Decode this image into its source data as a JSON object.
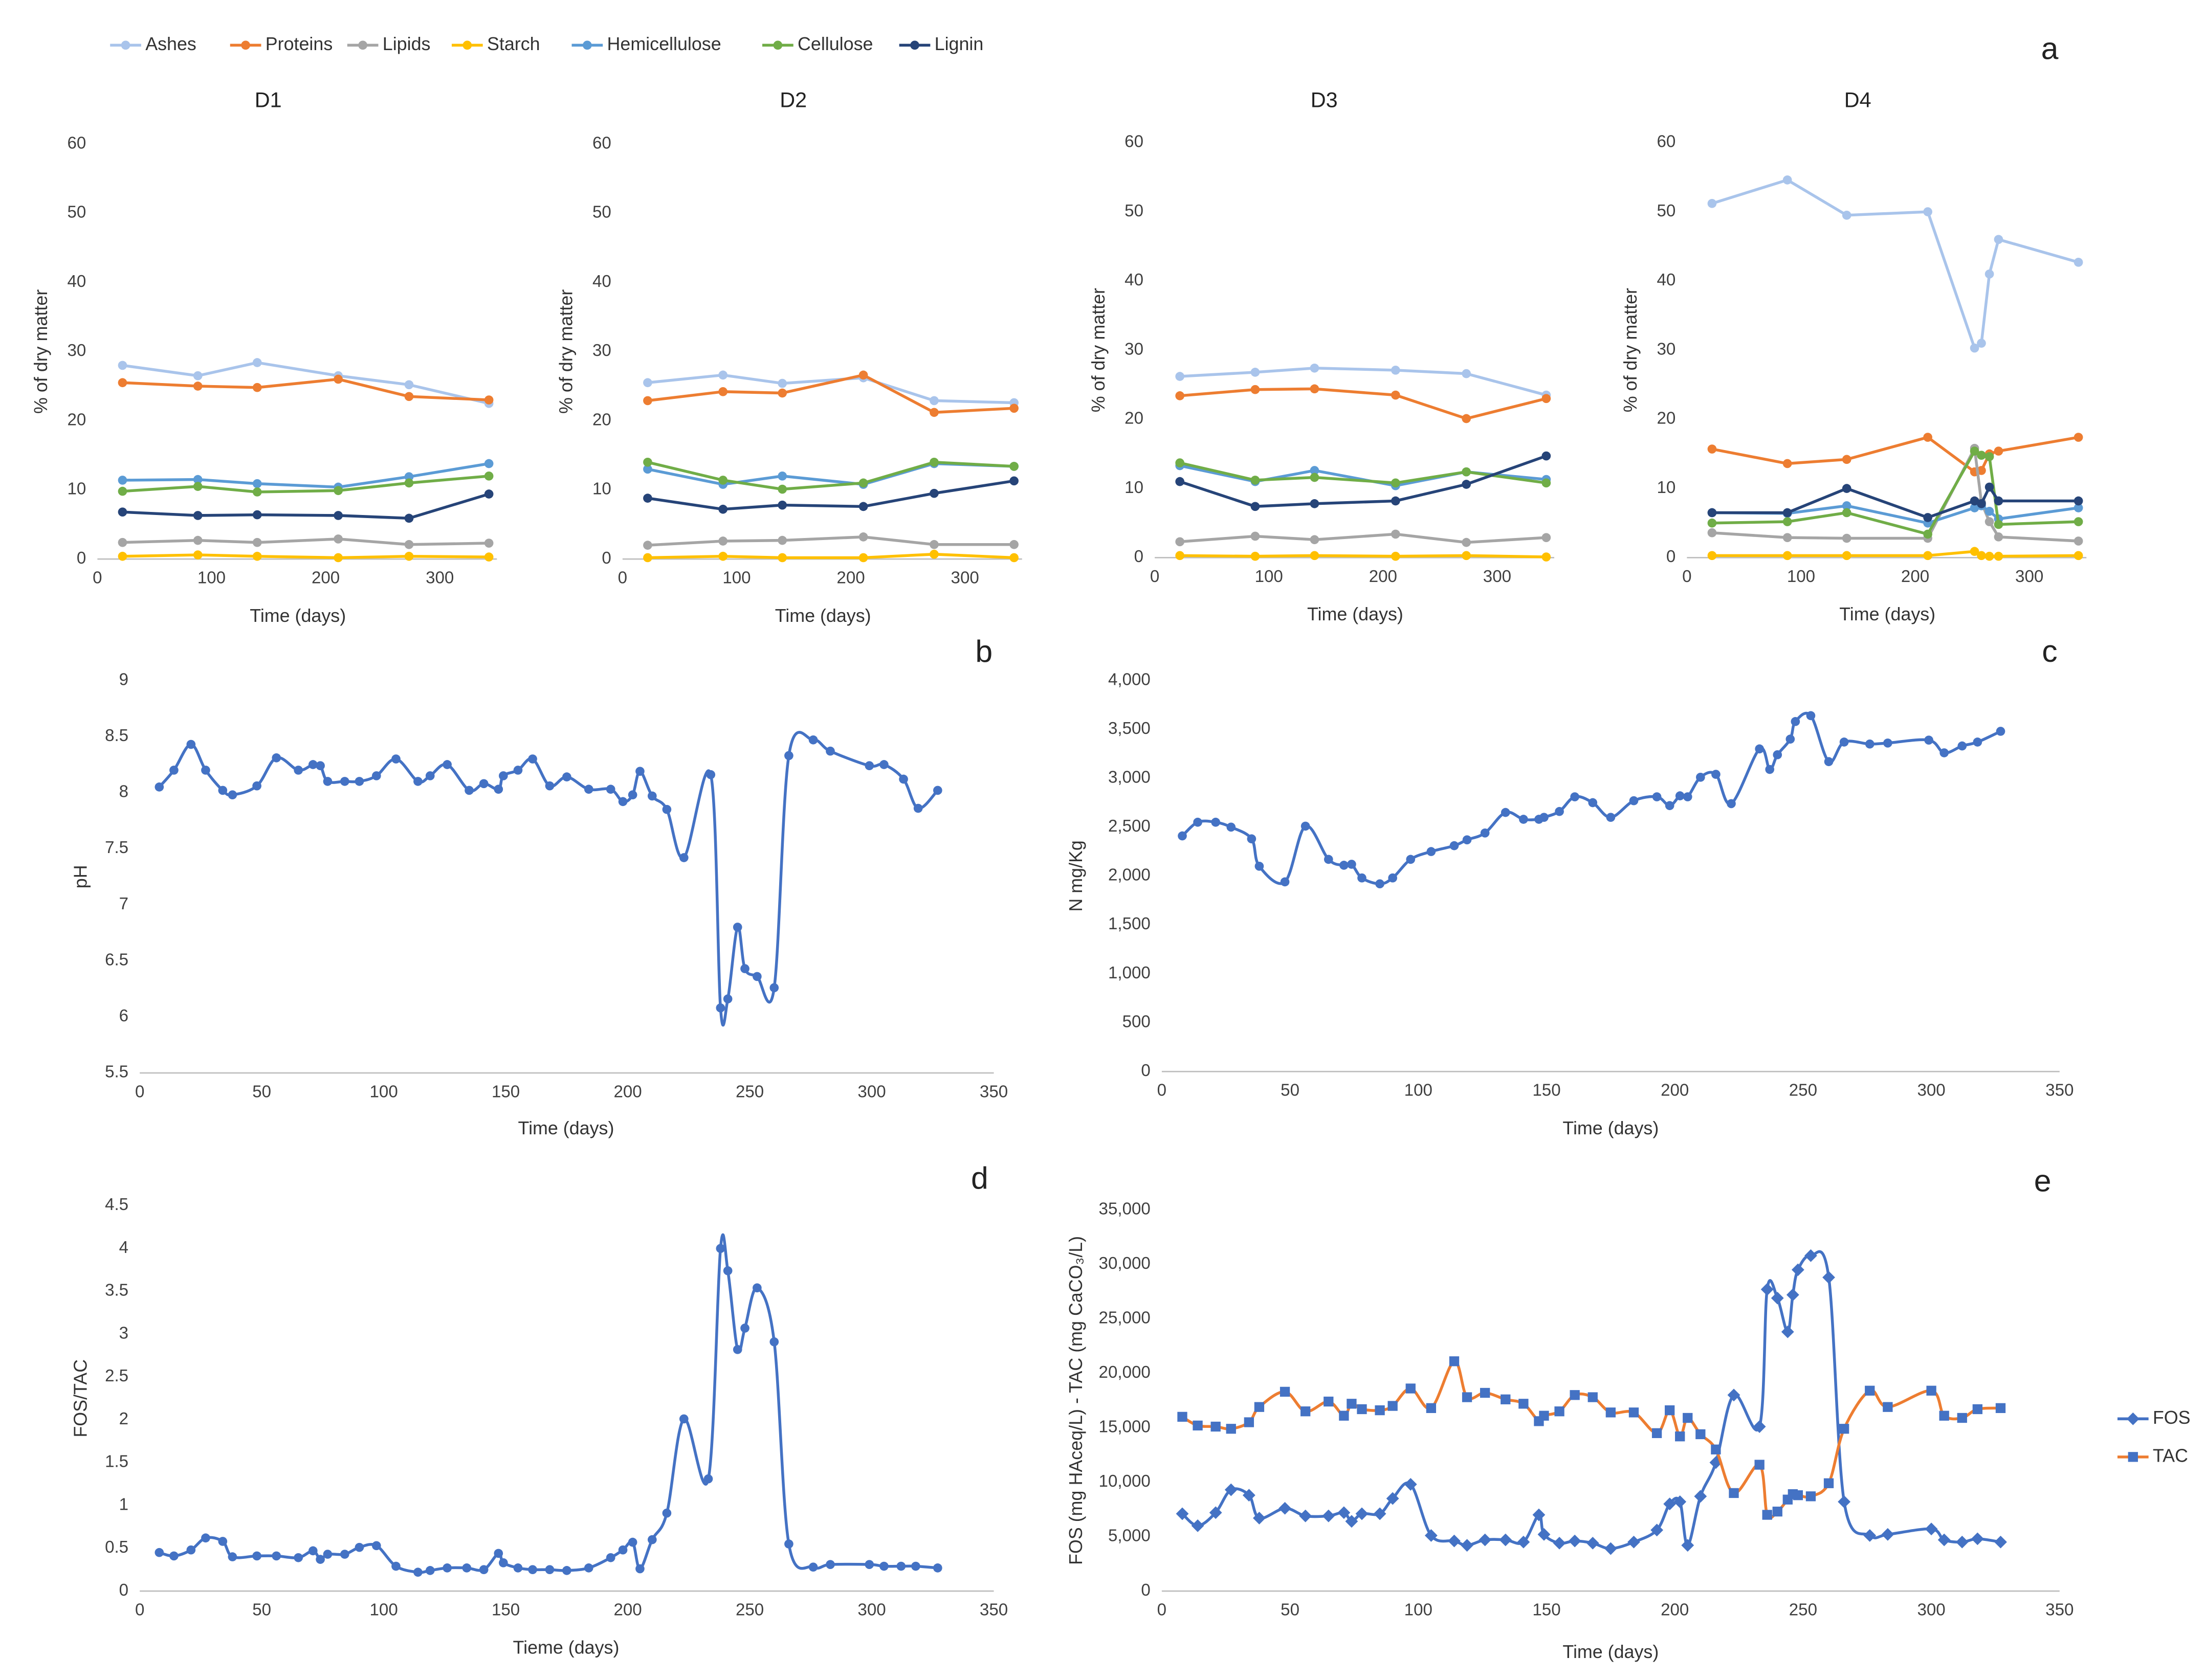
{
  "chart_data": [
    {
      "type": "line",
      "panel_label": "a",
      "title": "D1",
      "legend": "top",
      "x_label": "Time (days)",
      "y_label": "% of dry matter",
      "x": [
        22,
        88,
        140,
        211,
        273,
        343
      ],
      "xlim": [
        0,
        350
      ],
      "xticks": [
        0,
        100,
        200,
        300
      ],
      "ylim": [
        0,
        60
      ],
      "yticks": [
        0,
        10,
        20,
        30,
        40,
        50,
        60
      ],
      "grid": false,
      "smooth": false,
      "marker": "circle",
      "series": [
        {
          "name": "Ashes",
          "color": "#a9c4eb",
          "values": [
            28,
            26.5,
            28.4,
            26.5,
            25.2,
            22.5
          ]
        },
        {
          "name": "Proteins",
          "color": "#ed7d31",
          "values": [
            25.5,
            25,
            24.8,
            26,
            23.5,
            23
          ]
        },
        {
          "name": "Lipids",
          "color": "#a5a5a5",
          "values": [
            2.4,
            2.7,
            2.4,
            2.9,
            2.1,
            2.3
          ]
        },
        {
          "name": "Starch",
          "color": "#ffc000",
          "values": [
            0.4,
            0.6,
            0.4,
            0.2,
            0.4,
            0.3
          ]
        },
        {
          "name": "Hemicellulose",
          "color": "#5b9bd5",
          "values": [
            11.4,
            11.5,
            10.9,
            10.4,
            11.9,
            13.8
          ]
        },
        {
          "name": "Cellulose",
          "color": "#70ad47",
          "values": [
            9.8,
            10.5,
            9.7,
            9.9,
            11,
            12
          ]
        },
        {
          "name": "Lignin",
          "color": "#264478",
          "values": [
            6.8,
            6.3,
            6.4,
            6.3,
            5.9,
            9.4
          ]
        }
      ]
    },
    {
      "type": "line",
      "title": "D2",
      "x_label": "Time (days)",
      "y_label": "% of dry matter",
      "x": [
        22,
        88,
        140,
        211,
        273,
        343
      ],
      "xlim": [
        0,
        350
      ],
      "xticks": [
        0,
        100,
        200,
        300
      ],
      "ylim": [
        0,
        60
      ],
      "yticks": [
        0,
        10,
        20,
        30,
        40,
        50,
        60
      ],
      "grid": false,
      "smooth": false,
      "marker": "circle",
      "series": [
        {
          "color": "#a9c4eb",
          "values": [
            25.5,
            26.6,
            25.4,
            26.2,
            22.9,
            22.6
          ]
        },
        {
          "color": "#ed7d31",
          "values": [
            22.9,
            24.2,
            24,
            26.6,
            21.2,
            21.8
          ]
        },
        {
          "color": "#a5a5a5",
          "values": [
            2,
            2.6,
            2.7,
            3.2,
            2.1,
            2.1
          ]
        },
        {
          "color": "#ffc000",
          "values": [
            0.2,
            0.4,
            0.2,
            0.2,
            0.7,
            0.2
          ]
        },
        {
          "color": "#5b9bd5",
          "values": [
            13,
            10.8,
            12,
            10.8,
            13.8,
            13.4
          ]
        },
        {
          "color": "#70ad47",
          "values": [
            14,
            11.4,
            10.1,
            11,
            14,
            13.4
          ]
        },
        {
          "color": "#264478",
          "values": [
            8.8,
            7.2,
            7.8,
            7.6,
            9.5,
            11.3
          ]
        }
      ]
    },
    {
      "type": "line",
      "title": "D3",
      "x_label": "Time (days)",
      "y_label": "% of dry matter",
      "x": [
        22,
        88,
        140,
        211,
        273,
        343
      ],
      "xlim": [
        0,
        350
      ],
      "xticks": [
        0,
        100,
        200,
        300
      ],
      "ylim": [
        0,
        60
      ],
      "yticks": [
        0,
        10,
        20,
        30,
        40,
        50,
        60
      ],
      "grid": false,
      "smooth": false,
      "marker": "circle",
      "series": [
        {
          "color": "#a9c4eb",
          "values": [
            26.2,
            26.8,
            27.4,
            27.1,
            26.6,
            23.5
          ]
        },
        {
          "color": "#ed7d31",
          "values": [
            23.4,
            24.3,
            24.4,
            23.5,
            20.1,
            23
          ]
        },
        {
          "color": "#a5a5a5",
          "values": [
            2.3,
            3.1,
            2.6,
            3.4,
            2.2,
            2.9
          ]
        },
        {
          "color": "#ffc000",
          "values": [
            0.3,
            0.2,
            0.3,
            0.2,
            0.3,
            0.1
          ]
        },
        {
          "color": "#5b9bd5",
          "values": [
            13.3,
            11,
            12.6,
            10.4,
            12.4,
            11.3
          ]
        },
        {
          "color": "#70ad47",
          "values": [
            13.7,
            11.2,
            11.6,
            10.8,
            12.4,
            10.8
          ]
        },
        {
          "color": "#264478",
          "values": [
            11,
            7.4,
            7.8,
            8.2,
            10.6,
            14.7
          ]
        }
      ]
    },
    {
      "type": "line",
      "title": "D4",
      "x_label": "Time (days)",
      "y_label": "% of dry matter",
      "x": [
        22,
        88,
        140,
        211,
        252,
        258,
        265,
        273,
        343
      ],
      "xlim": [
        0,
        350
      ],
      "xticks": [
        0,
        100,
        200,
        300
      ],
      "ylim": [
        0,
        60
      ],
      "yticks": [
        0,
        10,
        20,
        30,
        40,
        50,
        60
      ],
      "grid": false,
      "smooth": false,
      "marker": "circle",
      "series": [
        {
          "color": "#a9c4eb",
          "values": [
            51.2,
            54.6,
            49.5,
            50,
            30.3,
            31,
            41,
            46,
            42.7
          ]
        },
        {
          "color": "#ed7d31",
          "values": [
            15.7,
            13.6,
            14.2,
            17.4,
            12.4,
            12.6,
            15,
            15.4,
            17.4
          ]
        },
        {
          "color": "#a5a5a5",
          "values": [
            3.6,
            2.9,
            2.8,
            2.8,
            15.8,
            8,
            5.2,
            3,
            2.4
          ]
        },
        {
          "color": "#ffc000",
          "values": [
            0.3,
            0.3,
            0.3,
            0.3,
            0.9,
            0.3,
            0.2,
            0.2,
            0.3
          ]
        },
        {
          "color": "#5b9bd5",
          "values": [
            6.5,
            6.4,
            7.5,
            5,
            7.2,
            7.5,
            6.7,
            5.6,
            7.2
          ]
        },
        {
          "color": "#70ad47",
          "values": [
            5,
            5.2,
            6.5,
            3.4,
            15.4,
            14.8,
            14.6,
            4.8,
            5.2
          ]
        },
        {
          "color": "#264478",
          "values": [
            6.5,
            6.5,
            10,
            5.8,
            8.2,
            7.8,
            10.2,
            8.2,
            8.2
          ]
        }
      ]
    },
    {
      "type": "line",
      "panel_label": "b",
      "x_label": "Time (days)",
      "y_label": "pH",
      "x": [
        8,
        14,
        21,
        27,
        34,
        38,
        48,
        56,
        65,
        71,
        74,
        77,
        84,
        90,
        97,
        105,
        114,
        119,
        126,
        135,
        141,
        147,
        149,
        155,
        161,
        168,
        175,
        184,
        193,
        198,
        202,
        205,
        210,
        216,
        223,
        234,
        238,
        241,
        245,
        248,
        253,
        260,
        266,
        276,
        283,
        299,
        305,
        313,
        319,
        327
      ],
      "xlim": [
        0,
        350
      ],
      "xticks": [
        0,
        50,
        100,
        150,
        200,
        250,
        300,
        350
      ],
      "ylim": [
        5.5,
        9
      ],
      "yticks": [
        5.5,
        6,
        6.5,
        7,
        7.5,
        8,
        8.5,
        9
      ],
      "grid": false,
      "smooth": true,
      "marker": "circle",
      "series": [
        {
          "color": "#4472c4",
          "values": [
            8.05,
            8.2,
            8.43,
            8.2,
            8.02,
            7.98,
            8.06,
            8.31,
            8.2,
            8.25,
            8.24,
            8.1,
            8.1,
            8.1,
            8.15,
            8.3,
            8.1,
            8.15,
            8.25,
            8.02,
            8.08,
            8.03,
            8.15,
            8.2,
            8.3,
            8.06,
            8.14,
            8.03,
            8.03,
            7.92,
            7.98,
            8.19,
            7.97,
            7.85,
            7.42,
            8.16,
            6.08,
            6.16,
            6.8,
            6.43,
            6.36,
            6.26,
            8.33,
            8.47,
            8.37,
            8.24,
            8.25,
            8.12,
            7.86,
            8.02
          ]
        }
      ]
    },
    {
      "type": "line",
      "panel_label": "c",
      "x_label": "Time (days)",
      "y_label": "N mg/Kg",
      "x": [
        8,
        14,
        21,
        27,
        35,
        38,
        48,
        56,
        65,
        71,
        74,
        78,
        85,
        90,
        97,
        105,
        114,
        119,
        126,
        134,
        141,
        147,
        149,
        155,
        161,
        168,
        175,
        184,
        193,
        198,
        202,
        205,
        210,
        216,
        222,
        233,
        237,
        240,
        245,
        247,
        253,
        260,
        266,
        276,
        283,
        299,
        305,
        312,
        318,
        327
      ],
      "xlim": [
        0,
        350
      ],
      "xticks": [
        0,
        50,
        100,
        150,
        200,
        250,
        300,
        350
      ],
      "ylim": [
        0,
        4000
      ],
      "yticks": [
        0,
        500,
        {
          "value": 1000,
          "label": "1,000"
        },
        {
          "value": 1500,
          "label": "1,500"
        },
        {
          "value": 2000,
          "label": "2,000"
        },
        {
          "value": 2500,
          "label": "2,500"
        },
        {
          "value": 3000,
          "label": "3,000"
        },
        {
          "value": 3500,
          "label": "3,500"
        },
        {
          "value": 4000,
          "label": "4,000"
        }
      ],
      "grid": false,
      "smooth": true,
      "marker": "circle",
      "series": [
        {
          "color": "#4472c4",
          "values": [
            2410,
            2550,
            2550,
            2500,
            2380,
            2100,
            1940,
            2510,
            2170,
            2110,
            2120,
            1980,
            1920,
            1980,
            2170,
            2250,
            2310,
            2370,
            2440,
            2650,
            2580,
            2580,
            2600,
            2660,
            2810,
            2750,
            2600,
            2770,
            2810,
            2720,
            2820,
            2810,
            3010,
            3040,
            2740,
            3300,
            3090,
            3240,
            3400,
            3580,
            3640,
            3170,
            3370,
            3350,
            3360,
            3390,
            3260,
            3330,
            3370,
            3480
          ]
        }
      ]
    },
    {
      "type": "line",
      "panel_label": "d",
      "x_label": "Tieme (days)",
      "y_label": "FOS/TAC",
      "x": [
        8,
        14,
        21,
        27,
        34,
        38,
        48,
        56,
        65,
        71,
        74,
        77,
        84,
        90,
        97,
        105,
        114,
        119,
        126,
        134,
        141,
        147,
        149,
        155,
        161,
        168,
        175,
        184,
        193,
        198,
        202,
        205,
        210,
        216,
        223,
        233,
        238,
        241,
        245,
        248,
        253,
        260,
        266,
        276,
        283,
        299,
        305,
        312,
        318,
        327
      ],
      "xlim": [
        0,
        350
      ],
      "xticks": [
        0,
        50,
        100,
        150,
        200,
        250,
        300,
        350
      ],
      "ylim": [
        0,
        4.5
      ],
      "yticks": [
        0,
        0.5,
        1,
        1.5,
        2,
        2.5,
        3,
        3.5,
        4,
        4.5
      ],
      "grid": false,
      "smooth": true,
      "marker": "circle",
      "series": [
        {
          "color": "#4472c4",
          "values": [
            0.45,
            0.41,
            0.48,
            0.62,
            0.58,
            0.4,
            0.41,
            0.41,
            0.39,
            0.47,
            0.37,
            0.43,
            0.43,
            0.51,
            0.53,
            0.29,
            0.22,
            0.24,
            0.27,
            0.27,
            0.25,
            0.44,
            0.33,
            0.27,
            0.25,
            0.25,
            0.24,
            0.27,
            0.39,
            0.48,
            0.57,
            0.26,
            0.6,
            0.91,
            2.01,
            1.31,
            4,
            3.74,
            2.82,
            3.07,
            3.54,
            2.91,
            0.55,
            0.28,
            0.31,
            0.31,
            0.29,
            0.29,
            0.29,
            0.27
          ]
        }
      ]
    },
    {
      "type": "line",
      "panel_label": "e",
      "legend": "right",
      "x_label": "Time (days)",
      "y_label": "FOS (mg HAceq/L) - TAC (mg CaCO₃/L)",
      "x": [
        8,
        14,
        21,
        27,
        34,
        38,
        48,
        56,
        65,
        71,
        74,
        78,
        85,
        90,
        97,
        105,
        114,
        119,
        126,
        134,
        141,
        147,
        149,
        155,
        161,
        168,
        175,
        184,
        193,
        198,
        202,
        205,
        210,
        216,
        223,
        233,
        236,
        240,
        244,
        246,
        248,
        253,
        260,
        266,
        276,
        283,
        300,
        305,
        312,
        318,
        327
      ],
      "xlim": [
        0,
        350
      ],
      "xticks": [
        0,
        50,
        100,
        150,
        200,
        250,
        300,
        350
      ],
      "ylim": [
        0,
        35000
      ],
      "yticks": [
        0,
        {
          "value": 5000,
          "label": "5,000"
        },
        {
          "value": 10000,
          "label": "10,000"
        },
        {
          "value": 15000,
          "label": "15,000"
        },
        {
          "value": 20000,
          "label": "20,000"
        },
        {
          "value": 25000,
          "label": "25,000"
        },
        {
          "value": 30000,
          "label": "30,000"
        },
        {
          "value": 35000,
          "label": "35,000"
        }
      ],
      "grid": false,
      "smooth": true,
      "series": [
        {
          "name": "FOS",
          "color": "#4472c4",
          "marker": "diamond",
          "values": [
            7100,
            6000,
            7200,
            9300,
            8800,
            6700,
            7600,
            6900,
            6900,
            7200,
            6400,
            7100,
            7100,
            8500,
            9800,
            5100,
            4600,
            4200,
            4700,
            4700,
            4500,
            7000,
            5200,
            4400,
            4600,
            4400,
            3900,
            4500,
            5600,
            8000,
            8200,
            4200,
            8700,
            11800,
            18000,
            15100,
            27700,
            26900,
            23800,
            27200,
            29500,
            30800,
            28800,
            8200,
            5100,
            5200,
            5700,
            4700,
            4500,
            4800,
            4500
          ]
        },
        {
          "name": "TAC",
          "color": "#ed7d31",
          "marker": "square",
          "marker_color": "#4472c4",
          "values": [
            16000,
            15200,
            15100,
            14900,
            15500,
            16900,
            18300,
            16500,
            17400,
            16100,
            17200,
            16700,
            16600,
            17000,
            18600,
            16800,
            21100,
            17800,
            18200,
            17600,
            17200,
            15600,
            16100,
            16500,
            18000,
            17800,
            16400,
            16400,
            14500,
            16600,
            14200,
            15900,
            14400,
            13000,
            9000,
            11600,
            7000,
            7300,
            8400,
            8900,
            8800,
            8700,
            9900,
            14900,
            18400,
            16900,
            18400,
            16100,
            15900,
            16700,
            16800
          ]
        }
      ]
    }
  ]
}
